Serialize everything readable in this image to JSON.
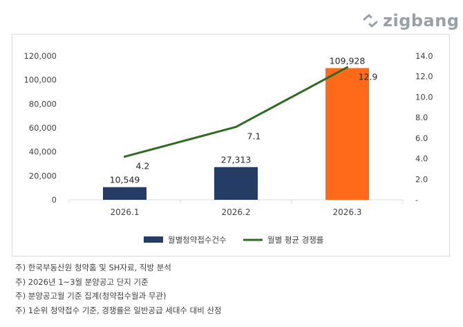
{
  "brand": {
    "name": "zigbang"
  },
  "chart_data": {
    "type": "bar+line",
    "categories": [
      "2026.1",
      "2026.2",
      "2026.3"
    ],
    "series": [
      {
        "name": "월별청약접수건수",
        "type": "bar",
        "axis": "left",
        "values": [
          10549,
          27313,
          109928
        ],
        "value_labels": [
          "10,549",
          "27,313",
          "109,928"
        ],
        "colors": [
          "#253c64",
          "#253c64",
          "#ff6a1a"
        ]
      },
      {
        "name": "월별 평균 경쟁률",
        "type": "line",
        "axis": "right",
        "values": [
          4.2,
          7.1,
          12.9
        ],
        "value_labels": [
          "4.2",
          "7.1",
          "12.9"
        ],
        "color": "#2e6a1f"
      }
    ],
    "y_left": {
      "min": 0,
      "max": 120000,
      "ticks": [
        "0",
        "20,000",
        "40,000",
        "60,000",
        "80,000",
        "100,000",
        "120,000"
      ]
    },
    "y_right": {
      "min": 0,
      "max": 14,
      "ticks": [
        "-",
        "2.0",
        "4.0",
        "6.0",
        "8.0",
        "10.0",
        "12.0",
        "14.0"
      ]
    },
    "grid": false,
    "legend_position": "bottom"
  },
  "notes": [
    "주) 한국부동산원 청약홈 및 SH자료, 직방 분석",
    "주) 2026년 1~3월 분양공고 단지 기준",
    "주) 분양공고월 기준 집계(청약접수월과 무관)",
    "주) 1순위 청약접수 기준, 경쟁률은 일반공급 세대수 대비 산정"
  ]
}
